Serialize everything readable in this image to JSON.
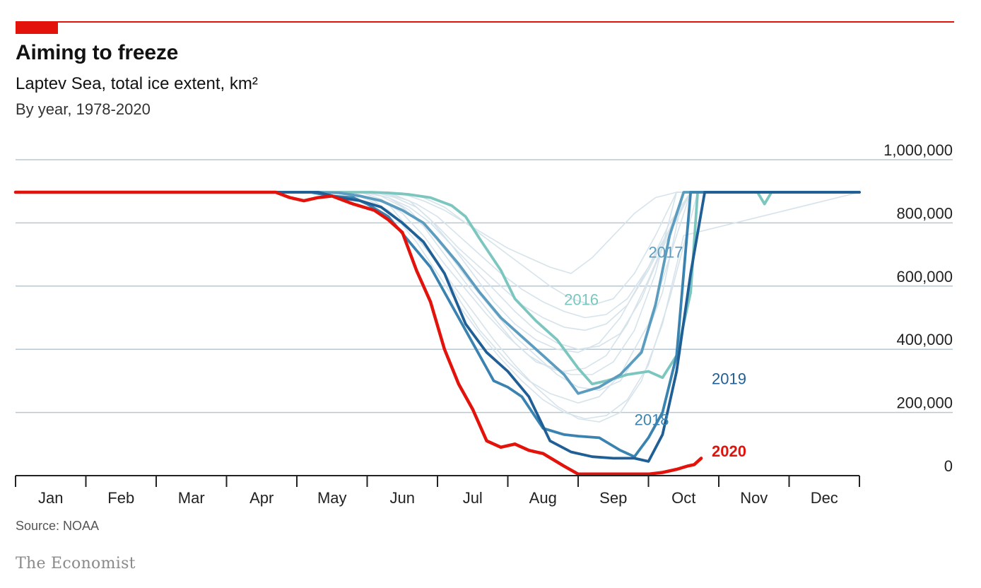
{
  "header": {
    "title": "Aiming to freeze",
    "subtitle": "Laptev Sea, total ice extent, km²",
    "subtitle2": "By year, 1978-2020"
  },
  "footer": {
    "source": "Source: NOAA",
    "brand": "The Economist"
  },
  "colors": {
    "accent": "#e3120b",
    "grid": "#b9c7d1",
    "background_years": "#d6e3eb",
    "y2016": "#7cc6c0",
    "y2017": "#5c9cbf",
    "y2018": "#3a83b0",
    "y2019": "#1f5f96",
    "y2020": "#e3120b"
  },
  "chart_data": {
    "type": "line",
    "title": "Aiming to freeze",
    "subtitle": "Laptev Sea, total ice extent, km²",
    "x_unit": "month index (0 = 1 Jan, 12 = 31 Dec)",
    "xlim": [
      0,
      12
    ],
    "ylim": [
      0,
      1000000
    ],
    "yticks": [
      0,
      200000,
      400000,
      600000,
      800000,
      1000000
    ],
    "ytick_labels": [
      "0",
      "200,000",
      "400,000",
      "600,000",
      "800,000",
      "1,000,000"
    ],
    "month_labels": [
      "Jan",
      "Feb",
      "Mar",
      "Apr",
      "May",
      "Jun",
      "Jul",
      "Aug",
      "Sep",
      "Oct",
      "Nov",
      "Dec"
    ],
    "grid": true,
    "legend": "direct labels",
    "background_series_note": "1978-2020",
    "background_series": [
      {
        "x": [
          0,
          4.7,
          5,
          5.3,
          5.6,
          6,
          6.3,
          6.6,
          7,
          7.3,
          7.6,
          8,
          8.3,
          8.6,
          9,
          9.2,
          9.4,
          9.6,
          12
        ],
        "y": [
          897000,
          897000,
          880000,
          860000,
          780000,
          680000,
          560000,
          460000,
          360000,
          300000,
          260000,
          230000,
          250000,
          320000,
          480000,
          620000,
          760000,
          897000,
          897000
        ]
      },
      {
        "x": [
          0,
          4.9,
          5.2,
          5.5,
          5.8,
          6.1,
          6.4,
          6.8,
          7.1,
          7.4,
          7.8,
          8.1,
          8.4,
          8.7,
          9,
          9.3,
          9.5,
          12
        ],
        "y": [
          897000,
          897000,
          885000,
          850000,
          790000,
          700000,
          610000,
          500000,
          420000,
          360000,
          330000,
          340000,
          380000,
          480000,
          620000,
          780000,
          897000,
          897000
        ]
      },
      {
        "x": [
          0,
          5,
          5.3,
          5.6,
          5.9,
          6.2,
          6.5,
          6.8,
          7.1,
          7.4,
          7.7,
          8,
          8.3,
          8.6,
          8.9,
          9.2,
          9.6,
          12
        ],
        "y": [
          897000,
          897000,
          890000,
          870000,
          810000,
          730000,
          640000,
          550000,
          480000,
          430000,
          400000,
          390000,
          420000,
          500000,
          620000,
          740000,
          897000,
          897000
        ]
      },
      {
        "x": [
          0,
          4.8,
          5.1,
          5.4,
          5.7,
          6,
          6.3,
          6.6,
          6.9,
          7.2,
          7.5,
          7.8,
          8.1,
          8.4,
          8.7,
          9,
          9.3,
          9.7,
          12
        ],
        "y": [
          897000,
          897000,
          870000,
          820000,
          740000,
          640000,
          540000,
          450000,
          370000,
          300000,
          240000,
          200000,
          180000,
          190000,
          240000,
          350000,
          560000,
          897000,
          897000
        ]
      },
      {
        "x": [
          0,
          5.1,
          5.4,
          5.7,
          6,
          6.3,
          6.6,
          6.9,
          7.2,
          7.5,
          7.8,
          8.1,
          8.4,
          8.7,
          9,
          9.3,
          9.6,
          12
        ],
        "y": [
          897000,
          897000,
          880000,
          850000,
          790000,
          720000,
          660000,
          600000,
          540000,
          500000,
          470000,
          460000,
          480000,
          540000,
          650000,
          780000,
          897000,
          897000
        ]
      },
      {
        "x": [
          0,
          5.2,
          5.5,
          5.8,
          6.1,
          6.4,
          6.7,
          7,
          7.3,
          7.6,
          7.9,
          8.2,
          8.5,
          8.8,
          9.1,
          9.4,
          9.7,
          12
        ],
        "y": [
          897000,
          897000,
          895000,
          880000,
          850000,
          800000,
          760000,
          720000,
          690000,
          660000,
          640000,
          690000,
          760000,
          830000,
          880000,
          897000,
          897000,
          897000
        ]
      },
      {
        "x": [
          0,
          4.9,
          5.2,
          5.5,
          5.8,
          6.1,
          6.4,
          6.7,
          7,
          7.3,
          7.6,
          7.9,
          8.2,
          8.5,
          8.8,
          9.1,
          9.4,
          12
        ],
        "y": [
          897000,
          897000,
          875000,
          830000,
          760000,
          670000,
          590000,
          510000,
          440000,
          380000,
          340000,
          320000,
          320000,
          360000,
          460000,
          640000,
          897000,
          897000
        ]
      },
      {
        "x": [
          0,
          5,
          5.3,
          5.6,
          5.9,
          6.2,
          6.5,
          6.8,
          7.1,
          7.4,
          7.7,
          8,
          8.3,
          8.6,
          8.9,
          9.2,
          9.5,
          12
        ],
        "y": [
          897000,
          897000,
          880000,
          840000,
          770000,
          690000,
          600000,
          520000,
          440000,
          380000,
          320000,
          280000,
          270000,
          300000,
          400000,
          580000,
          897000,
          897000
        ]
      },
      {
        "x": [
          0,
          5.1,
          5.4,
          5.7,
          6,
          6.3,
          6.6,
          6.9,
          7.2,
          7.5,
          7.8,
          8.1,
          8.4,
          8.7,
          9,
          9.3,
          9.6,
          12
        ],
        "y": [
          897000,
          897000,
          888000,
          860000,
          820000,
          760000,
          700000,
          640000,
          590000,
          550000,
          520000,
          500000,
          510000,
          560000,
          660000,
          800000,
          897000,
          897000
        ]
      },
      {
        "x": [
          0,
          4.7,
          5,
          5.3,
          5.6,
          5.9,
          6.2,
          6.5,
          6.8,
          7.1,
          7.4,
          7.7,
          8,
          8.3,
          8.6,
          8.9,
          9.2,
          9.5,
          12
        ],
        "y": [
          897000,
          897000,
          875000,
          840000,
          780000,
          700000,
          610000,
          520000,
          430000,
          350000,
          280000,
          220000,
          180000,
          170000,
          200000,
          300000,
          480000,
          760000,
          897000
        ]
      },
      {
        "x": [
          0,
          5.2,
          5.5,
          5.8,
          6.1,
          6.4,
          6.7,
          7,
          7.3,
          7.6,
          7.9,
          8.2,
          8.5,
          8.8,
          9.1,
          9.4,
          12
        ],
        "y": [
          897000,
          897000,
          892000,
          870000,
          840000,
          800000,
          750000,
          700000,
          650000,
          600000,
          560000,
          540000,
          560000,
          640000,
          760000,
          897000,
          897000
        ]
      },
      {
        "x": [
          0,
          5,
          5.3,
          5.6,
          5.9,
          6.2,
          6.5,
          6.8,
          7.1,
          7.4,
          7.7,
          8,
          8.3,
          8.6,
          8.9,
          9.2,
          9.6,
          12
        ],
        "y": [
          897000,
          897000,
          880000,
          850000,
          800000,
          730000,
          660000,
          590000,
          520000,
          460000,
          420000,
          400000,
          410000,
          450000,
          560000,
          720000,
          897000,
          897000
        ]
      }
    ],
    "series": [
      {
        "name": "2016",
        "color": "#7cc6c0",
        "x": [
          0,
          5.05,
          5.3,
          5.6,
          5.9,
          6.2,
          6.4,
          6.6,
          6.9,
          7.1,
          7.4,
          7.7,
          8,
          8.2,
          8.4,
          8.7,
          9,
          9.2,
          9.4,
          9.6,
          9.7,
          12
        ],
        "y": [
          897000,
          897000,
          895000,
          890000,
          880000,
          855000,
          820000,
          750000,
          650000,
          560000,
          490000,
          430000,
          340000,
          290000,
          300000,
          320000,
          330000,
          310000,
          380000,
          580000,
          897000,
          897000
        ]
      },
      {
        "name": "2016",
        "color": "#7cc6c0",
        "x": [
          10.55,
          10.65,
          10.75,
          12
        ],
        "y": [
          897000,
          860000,
          897000,
          897000
        ]
      },
      {
        "name": "2017",
        "color": "#5c9cbf",
        "x": [
          0,
          4.3,
          4.6,
          4.9,
          5.2,
          5.5,
          5.8,
          6,
          6.3,
          6.6,
          6.9,
          7.2,
          7.5,
          7.8,
          8,
          8.3,
          8.6,
          8.9,
          9.1,
          9.3,
          9.5,
          12
        ],
        "y": [
          897000,
          897000,
          895000,
          885000,
          870000,
          840000,
          800000,
          750000,
          670000,
          580000,
          500000,
          440000,
          380000,
          320000,
          260000,
          280000,
          320000,
          390000,
          540000,
          760000,
          897000,
          897000
        ]
      },
      {
        "name": "2018",
        "color": "#3a83b0",
        "x": [
          0,
          4.2,
          4.5,
          4.8,
          5,
          5.3,
          5.6,
          5.9,
          6.2,
          6.5,
          6.8,
          7,
          7.2,
          7.5,
          7.8,
          8,
          8.3,
          8.6,
          8.8,
          9,
          9.2,
          9.4,
          9.6,
          12
        ],
        "y": [
          897000,
          897000,
          885000,
          880000,
          860000,
          820000,
          740000,
          660000,
          540000,
          420000,
          300000,
          280000,
          250000,
          150000,
          130000,
          125000,
          120000,
          80000,
          60000,
          120000,
          200000,
          380000,
          897000,
          897000
        ]
      },
      {
        "name": "2019",
        "color": "#1f5f96",
        "x": [
          0,
          4.3,
          4.6,
          4.9,
          5.2,
          5.5,
          5.8,
          6.1,
          6.4,
          6.7,
          7,
          7.3,
          7.6,
          7.9,
          8.2,
          8.5,
          8.8,
          9,
          9.2,
          9.4,
          9.6,
          9.8,
          12
        ],
        "y": [
          897000,
          897000,
          880000,
          870000,
          850000,
          800000,
          740000,
          640000,
          480000,
          390000,
          330000,
          250000,
          110000,
          75000,
          60000,
          55000,
          55000,
          45000,
          130000,
          330000,
          640000,
          897000,
          897000
        ]
      },
      {
        "name": "2020",
        "color": "#e3120b",
        "x": [
          0,
          3.7,
          3.9,
          4.1,
          4.3,
          4.5,
          4.8,
          5.1,
          5.3,
          5.5,
          5.7,
          5.9,
          6.1,
          6.3,
          6.5,
          6.7,
          6.9,
          7.1,
          7.3,
          7.5,
          7.8,
          8,
          8.3,
          8.6,
          9,
          9.2,
          9.4,
          9.55,
          9.65,
          9.75
        ],
        "y": [
          897000,
          897000,
          880000,
          870000,
          880000,
          885000,
          860000,
          840000,
          810000,
          770000,
          650000,
          550000,
          400000,
          290000,
          210000,
          110000,
          90000,
          100000,
          80000,
          70000,
          30000,
          5000,
          5000,
          5000,
          5000,
          10000,
          20000,
          30000,
          35000,
          55000
        ]
      }
    ],
    "labels": [
      {
        "text": "2016",
        "x": 7.8,
        "y": 540000,
        "color": "#7cc6c0"
      },
      {
        "text": "2017",
        "x": 9.0,
        "y": 690000,
        "color": "#5c9cbf"
      },
      {
        "text": "2018",
        "x": 8.8,
        "y": 160000,
        "color": "#3a83b0"
      },
      {
        "text": "2019",
        "x": 9.9,
        "y": 290000,
        "color": "#1f5f96"
      },
      {
        "text": "2020",
        "x": 9.9,
        "y": 60000,
        "color": "#e3120b"
      }
    ]
  }
}
